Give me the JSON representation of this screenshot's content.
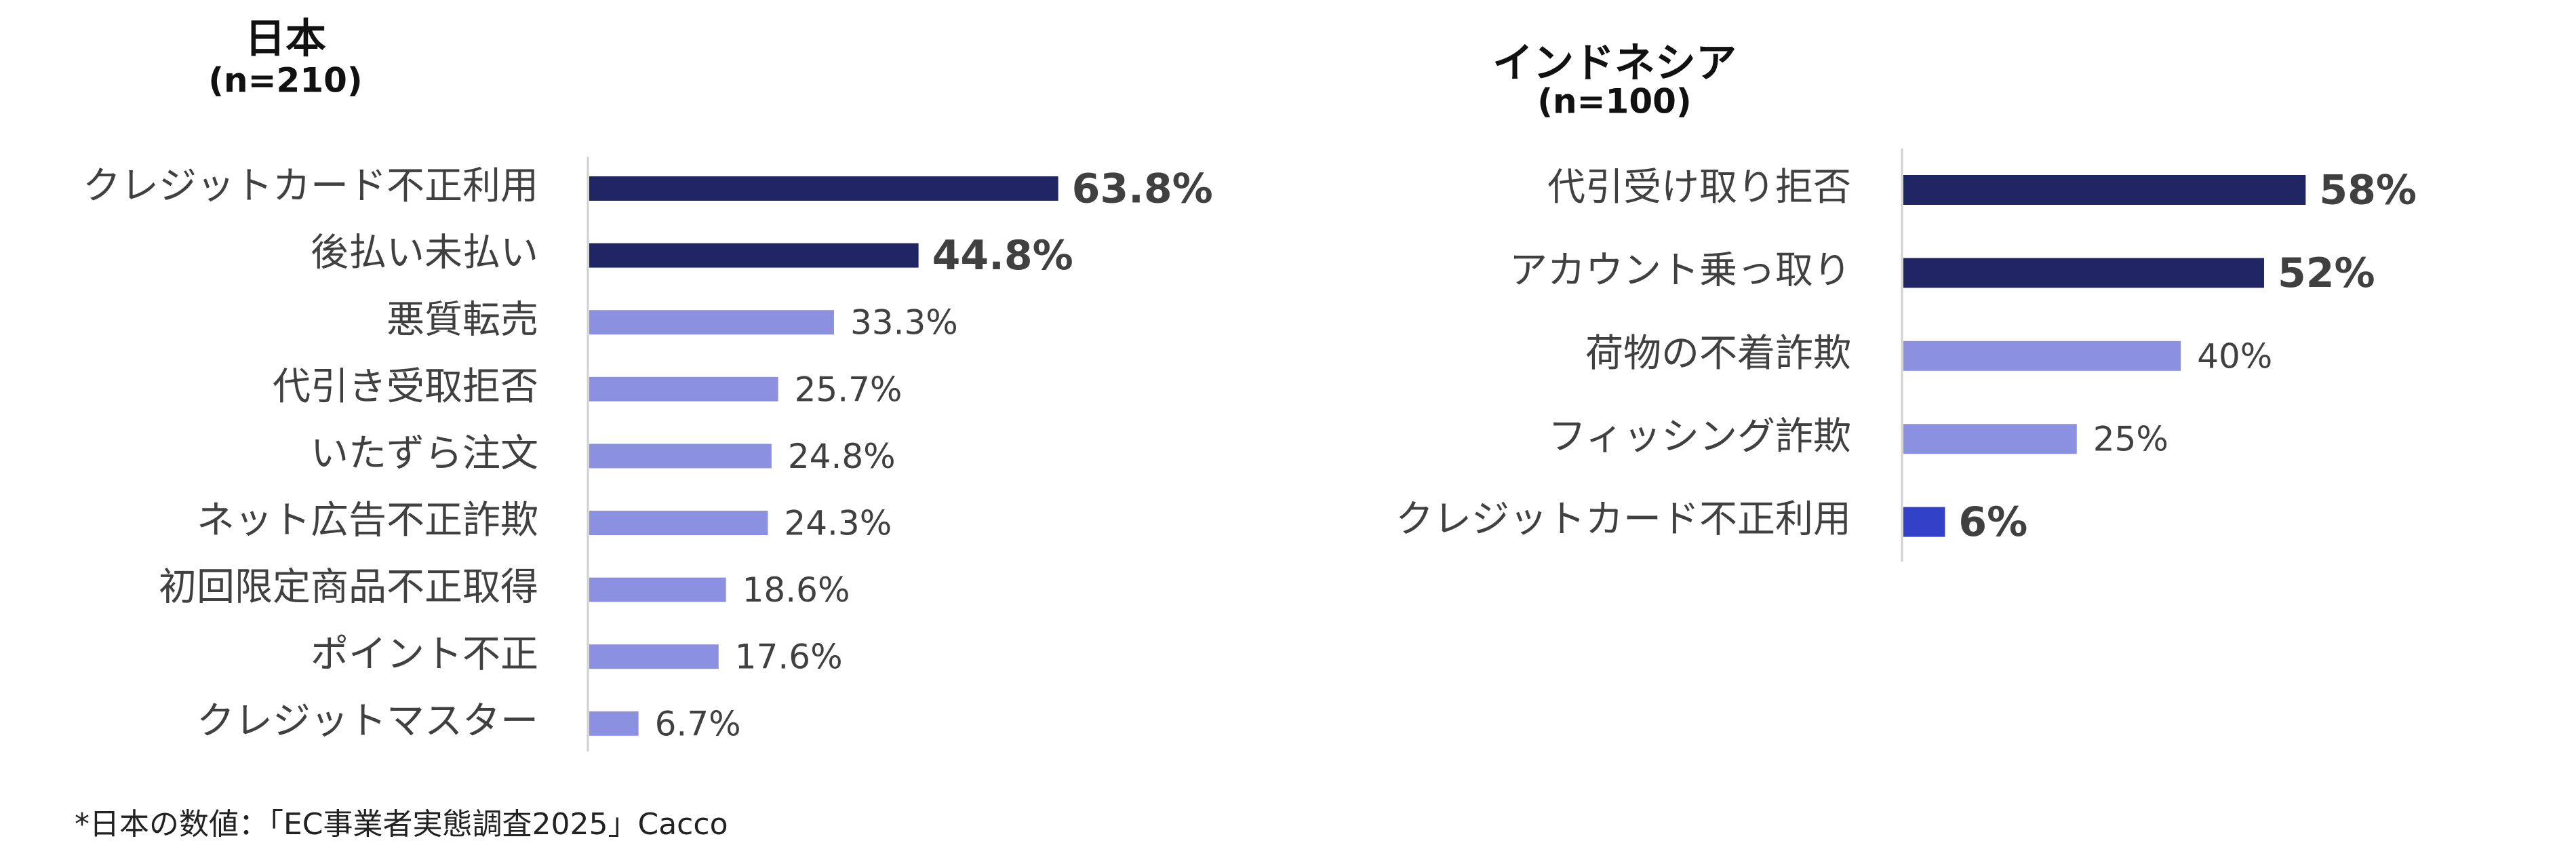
{
  "chart_data": [
    {
      "type": "hbar",
      "title": "日本",
      "subtitle": "(n=210)",
      "categories": [
        "クレジットカード不正利用",
        "後払い未払い",
        "悪質転売",
        "代引き受取拒否",
        "いたずら注文",
        "ネット広告不正詐欺",
        "初回限定商品不正取得",
        "ポイント不正",
        "クレジットマスター"
      ],
      "values": [
        63.8,
        44.8,
        33.3,
        25.7,
        24.8,
        24.3,
        18.6,
        17.6,
        6.7
      ],
      "value_labels": [
        "63.8%",
        "44.8%",
        "33.3%",
        "25.7%",
        "24.8%",
        "24.3%",
        "18.6%",
        "17.6%",
        "6.7%"
      ],
      "colors": [
        "#1f2462",
        "#1f2462",
        "#8b91e0",
        "#8b91e0",
        "#8b91e0",
        "#8b91e0",
        "#8b91e0",
        "#8b91e0",
        "#8b91e0"
      ],
      "value_label_bold": [
        true,
        true,
        false,
        false,
        false,
        false,
        false,
        false,
        false
      ]
    },
    {
      "type": "hbar",
      "title": "インドネシア",
      "subtitle": "(n=100)",
      "categories": [
        "代引受け取り拒否",
        "アカウント乗っ取り",
        "荷物の不着詐欺",
        "フィッシング詐欺",
        "クレジットカード不正利用"
      ],
      "values": [
        58,
        52,
        40,
        25,
        6
      ],
      "value_labels": [
        "58%",
        "52%",
        "40%",
        "25%",
        "6%"
      ],
      "colors": [
        "#1f2462",
        "#1f2462",
        "#8b91e0",
        "#8b91e0",
        "#3341c9"
      ],
      "value_label_bold": [
        true,
        true,
        false,
        false,
        true
      ]
    }
  ],
  "footnote": "*日本の数値：「EC事業者実態調査2025」Cacco"
}
